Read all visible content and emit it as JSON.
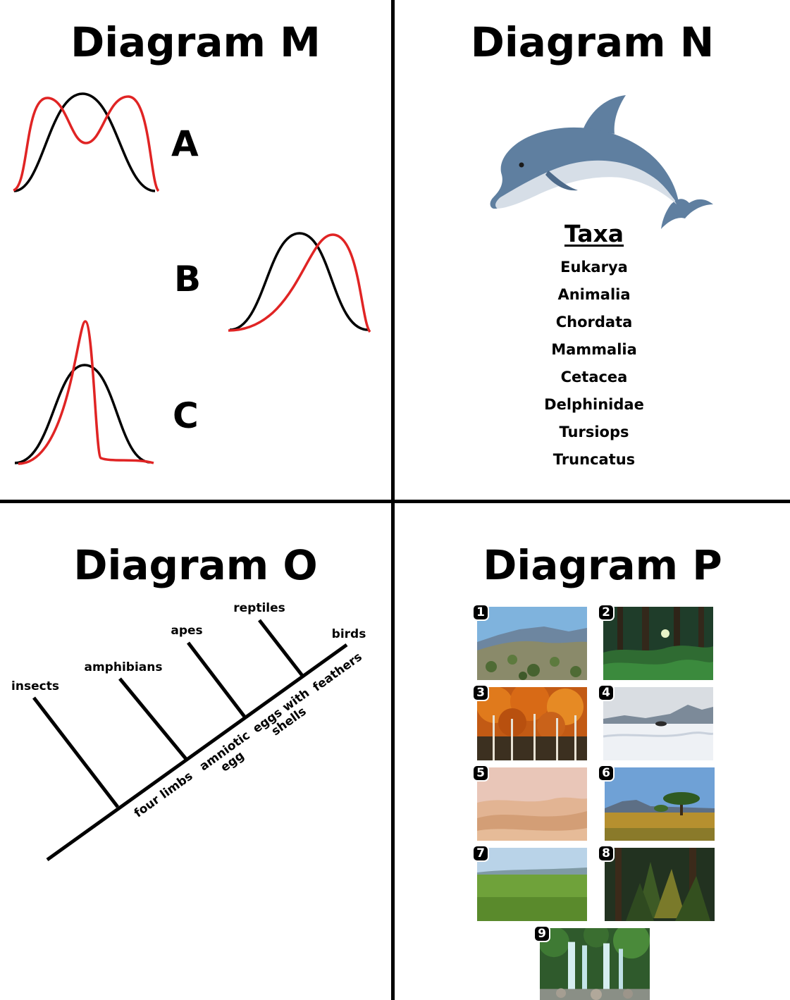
{
  "panels": {
    "m": {
      "title": "Diagram M",
      "curves": [
        {
          "label": "A"
        },
        {
          "label": "B"
        },
        {
          "label": "C"
        }
      ]
    },
    "n": {
      "title": "Diagram N",
      "image_icon": "dolphin-icon",
      "taxa_heading": "Taxa",
      "taxa": [
        "Eukarya",
        "Animalia",
        "Chordata",
        "Mammalia",
        "Cetacea",
        "Delphinidae",
        "Tursiops",
        "Truncatus"
      ]
    },
    "o": {
      "title": "Diagram O",
      "taxa": [
        "insects",
        "amphibians",
        "apes",
        "reptiles",
        "birds"
      ],
      "traits": {
        "t1": "four limbs",
        "t2a": "amniotic",
        "t2b": "egg",
        "t3a": "eggs with",
        "t3b": "shells",
        "t4": "feathers"
      }
    },
    "p": {
      "title": "Diagram P",
      "biomes": [
        {
          "number": "1",
          "icon": "chaparral-landscape-icon"
        },
        {
          "number": "2",
          "icon": "rainforest-landscape-icon"
        },
        {
          "number": "3",
          "icon": "deciduous-forest-landscape-icon"
        },
        {
          "number": "4",
          "icon": "tundra-landscape-icon"
        },
        {
          "number": "5",
          "icon": "desert-landscape-icon"
        },
        {
          "number": "6",
          "icon": "savanna-landscape-icon"
        },
        {
          "number": "7",
          "icon": "grassland-landscape-icon"
        },
        {
          "number": "8",
          "icon": "taiga-landscape-icon"
        },
        {
          "number": "9",
          "icon": "waterfall-landscape-icon"
        }
      ]
    }
  },
  "colors": {
    "ink": "#000000",
    "curve_selected": "#e02424",
    "dolphin_body": "#5f7fa0",
    "dolphin_belly": "#d6dee7"
  }
}
